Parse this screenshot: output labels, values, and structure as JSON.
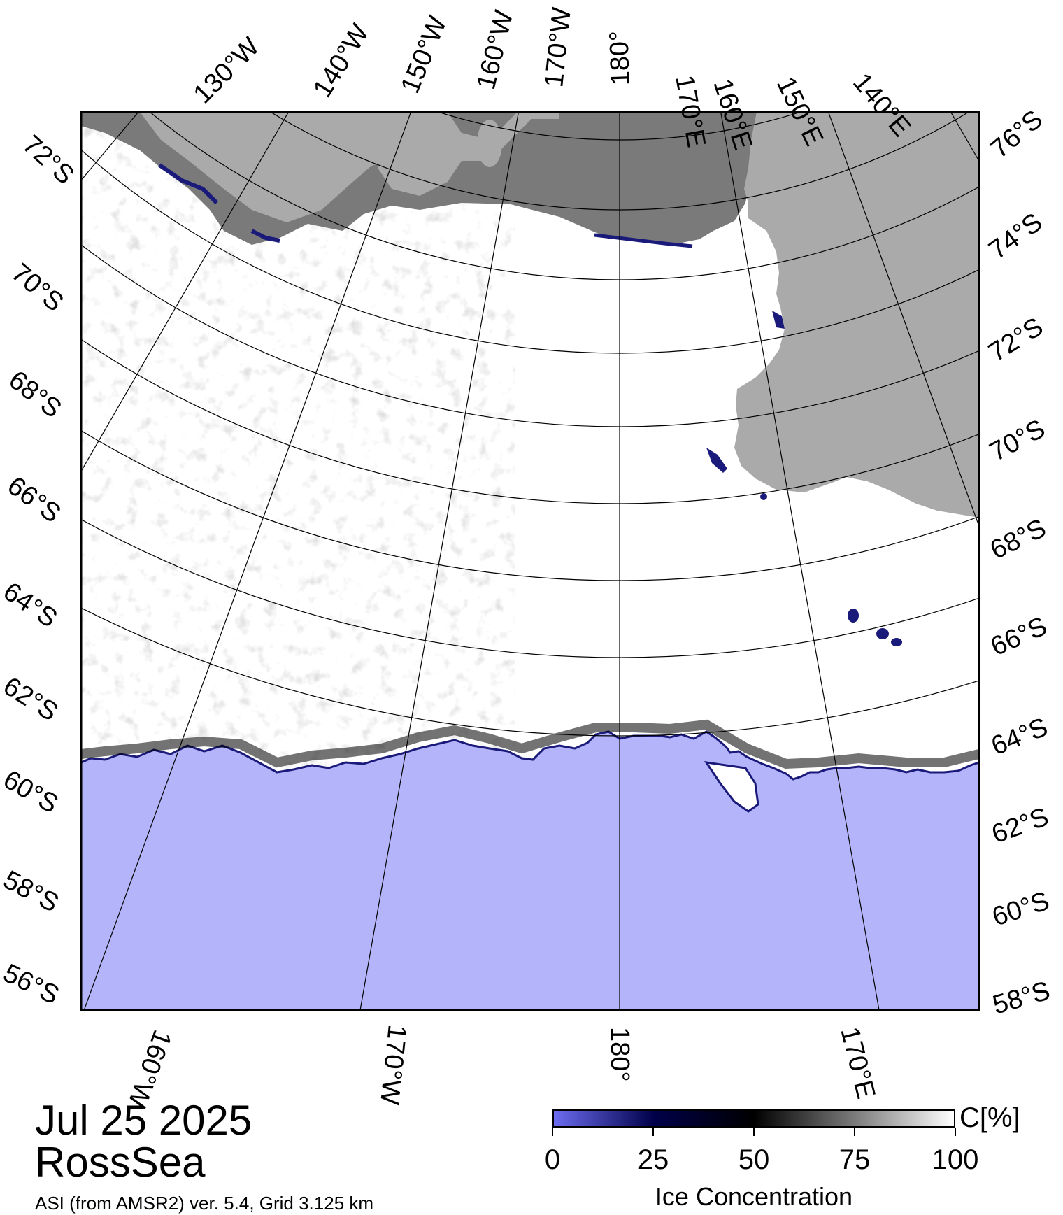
{
  "title": {
    "date": "Jul 25 2025",
    "region": "RossSea",
    "source": "ASI (from AMSR2) ver. 5.4,  Grid 3.125 km"
  },
  "colorbar": {
    "title": "Ice Concentration",
    "unit": "C[%]",
    "ticks": [
      "0",
      "25",
      "50",
      "75",
      "100"
    ],
    "colors": [
      "#6c6cf0",
      "#00004a",
      "#000000",
      "#7a7a7a",
      "#ffffff"
    ]
  },
  "map": {
    "top_meridian_labels": [
      "130°W",
      "140°W",
      "150°W",
      "160°W",
      "170°W",
      "180°",
      "170°E",
      "160°E",
      "150°E",
      "140°E"
    ],
    "bottom_meridian_labels": [
      "160°W",
      "170°W",
      "180°",
      "170°E"
    ],
    "left_parallel_labels": [
      "72°S",
      "70°S",
      "68°S",
      "66°S",
      "64°S",
      "62°S",
      "60°S",
      "58°S",
      "56°S"
    ],
    "right_parallel_labels": [
      "76°S",
      "74°S",
      "72°S",
      "70°S",
      "68°S",
      "66°S",
      "64°S",
      "62°S",
      "60°S",
      "58°S"
    ],
    "colors": {
      "open_water": "#b4b4fa",
      "ice": "#ffffff",
      "land": "#aaaaaa",
      "ice_shelf": "#7a7a7a",
      "ice_edge": "#20208a"
    }
  }
}
